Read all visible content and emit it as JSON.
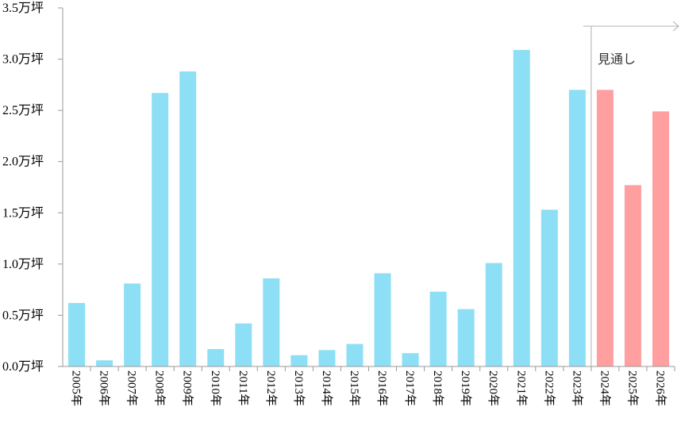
{
  "chart_data": {
    "type": "bar",
    "categories": [
      "2005年",
      "2006年",
      "2007年",
      "2008年",
      "2009年",
      "2010年",
      "2011年",
      "2012年",
      "2013年",
      "2014年",
      "2015年",
      "2016年",
      "2017年",
      "2018年",
      "2019年",
      "2020年",
      "2021年",
      "2022年",
      "2023年",
      "2024年",
      "2025年",
      "2026年"
    ],
    "values": [
      0.62,
      0.06,
      0.81,
      2.67,
      2.88,
      0.17,
      0.42,
      0.86,
      0.11,
      0.16,
      0.22,
      0.91,
      0.13,
      0.73,
      0.56,
      1.01,
      3.09,
      1.53,
      2.7,
      2.7,
      1.77,
      2.49
    ],
    "forecast": [
      false,
      false,
      false,
      false,
      false,
      false,
      false,
      false,
      false,
      false,
      false,
      false,
      false,
      false,
      false,
      false,
      false,
      false,
      false,
      true,
      true,
      true
    ],
    "ylim": [
      0,
      3.5
    ],
    "yticks": [
      "0.0万坪",
      "0.5万坪",
      "1.0万坪",
      "1.5万坪",
      "2.0万坪",
      "2.5万坪",
      "3.0万坪",
      "3.5万坪"
    ],
    "grid": false,
    "colors": {
      "actual": "#8ddff5",
      "forecast": "#ff9fa0",
      "axis": "#9a9a9a",
      "arrow": "#b0b0b0"
    },
    "annotation": "見通し"
  }
}
